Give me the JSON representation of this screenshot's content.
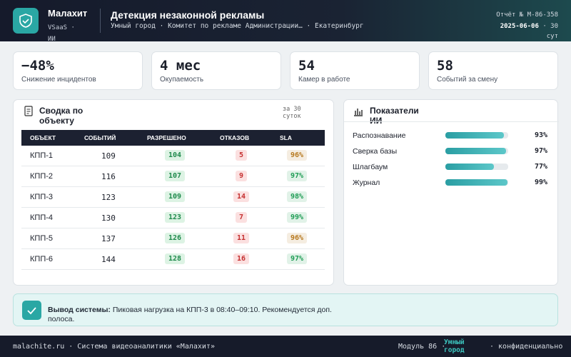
{
  "header": {
    "brand": "Малахит",
    "brand_sub": "VSaaS · ИИ",
    "title": "Детекция незаконной рекламы",
    "subtitle": "Умный город · Комитет по рекламе Администрации… · Екатеринбург",
    "report": "Отчёт № М-86-358",
    "date": "2025-06-06",
    "period": "· 30 сут"
  },
  "kpis": [
    {
      "value": "−48%",
      "label": "Снижение инцидентов"
    },
    {
      "value": "4 мес",
      "label": "Окупаемость"
    },
    {
      "value": "54",
      "label": "Камер в работе"
    },
    {
      "value": "58",
      "label": "Событий за смену"
    }
  ],
  "table": {
    "title": "Сводка по объекту",
    "note": "за 30 суток",
    "columns": [
      "ОБЪЕКТ",
      "СОБЫТИЙ",
      "РАЗРЕШЕНО",
      "ОТКАЗОВ",
      "SLA"
    ],
    "rows": [
      {
        "object": "КПП-1",
        "events": 109,
        "resolved": 104,
        "rejected": 5,
        "sla": "96%",
        "sla_color": "#b7791f"
      },
      {
        "object": "КПП-2",
        "events": 116,
        "resolved": 107,
        "rejected": 9,
        "sla": "97%",
        "sla_color": "#1f9d55"
      },
      {
        "object": "КПП-3",
        "events": 123,
        "resolved": 109,
        "rejected": 14,
        "sla": "98%",
        "sla_color": "#1f9d55"
      },
      {
        "object": "КПП-4",
        "events": 130,
        "resolved": 123,
        "rejected": 7,
        "sla": "99%",
        "sla_color": "#1f9d55"
      },
      {
        "object": "КПП-5",
        "events": 137,
        "resolved": 126,
        "rejected": 11,
        "sla": "96%",
        "sla_color": "#b7791f"
      },
      {
        "object": "КПП-6",
        "events": 144,
        "resolved": 128,
        "rejected": 16,
        "sla": "97%",
        "sla_color": "#1f9d55"
      }
    ]
  },
  "ai": {
    "title": "Показатели ИИ",
    "items": [
      {
        "name": "Распознавание",
        "value": 93,
        "value_label": "93%"
      },
      {
        "name": "Сверка базы",
        "value": 97,
        "value_label": "97%"
      },
      {
        "name": "Шлагбаум",
        "value": 77,
        "value_label": "77%"
      },
      {
        "name": "Журнал",
        "value": 99,
        "value_label": "99%"
      }
    ]
  },
  "callout": {
    "label": "Вывод системы:",
    "text": "Пиковая нагрузка на КПП-3 в 08:40–09:10. Рекомендуется доп. полоса."
  },
  "footer": {
    "left": "malachite.ru · Система видеоаналитики «Малахит»",
    "module": "Модуль 86 ·",
    "highlight": "Умный город",
    "right": "· конфиденциально"
  }
}
